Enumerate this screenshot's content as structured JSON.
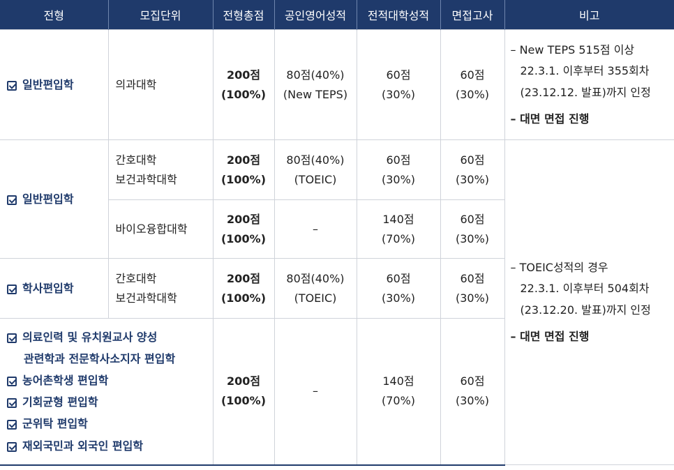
{
  "header": {
    "col1": "전형",
    "col2": "모집단위",
    "col3": "전형총점",
    "col4": "공인영어성적",
    "col5": "전적대학성적",
    "col6": "면접고사",
    "col7": "비고"
  },
  "rows": [
    {
      "type": "일반편입학",
      "unit": "의과대학",
      "total": [
        "200점",
        "(100%)"
      ],
      "english": [
        "80점(40%)",
        "(New TEPS)"
      ],
      "college": [
        "60점",
        "(30%)"
      ],
      "interview": [
        "60점",
        "(30%)"
      ]
    },
    {
      "type": "일반편입학",
      "unit": [
        "간호대학",
        "보건과학대학"
      ],
      "total": [
        "200점",
        "(100%)"
      ],
      "english": [
        "80점(40%)",
        "(TOEIC)"
      ],
      "college": [
        "60점",
        "(30%)"
      ],
      "interview": [
        "60점",
        "(30%)"
      ]
    },
    {
      "unit": "바이오융합대학",
      "total": [
        "200점",
        "(100%)"
      ],
      "english": "–",
      "college": [
        "140점",
        "(70%)"
      ],
      "interview": [
        "60점",
        "(30%)"
      ]
    },
    {
      "type": "학사편입학",
      "unit": [
        "간호대학",
        "보건과학대학"
      ],
      "total": [
        "200점",
        "(100%)"
      ],
      "english": [
        "80점(40%)",
        "(TOEIC)"
      ],
      "college": [
        "60점",
        "(30%)"
      ],
      "interview": [
        "60점",
        "(30%)"
      ]
    },
    {
      "types": [
        "의료인력 및 유치원교사 양성",
        "관련학과 전문학사소지자 편입학",
        "농어촌학생 편입학",
        "기회균형 편입학",
        "군위탁 편입학",
        "재외국민과 외국인 편입학"
      ],
      "total": [
        "200점",
        "(100%)"
      ],
      "english": "–",
      "college": [
        "140점",
        "(70%)"
      ],
      "interview": [
        "60점",
        "(30%)"
      ]
    }
  ],
  "notes": {
    "teps": [
      "– New TEPS 515점 이상",
      "22.3.1. 이후부터 355회차",
      "(23.12.12. 발표)까지 인정",
      "– 대면 면접 진행"
    ],
    "toeic": [
      "– TOEIC성적의 경우",
      "22.3.1. 이후부터 504회차",
      "(23.12.20. 발표)까지 인정",
      "– 대면 면접 진행"
    ]
  }
}
